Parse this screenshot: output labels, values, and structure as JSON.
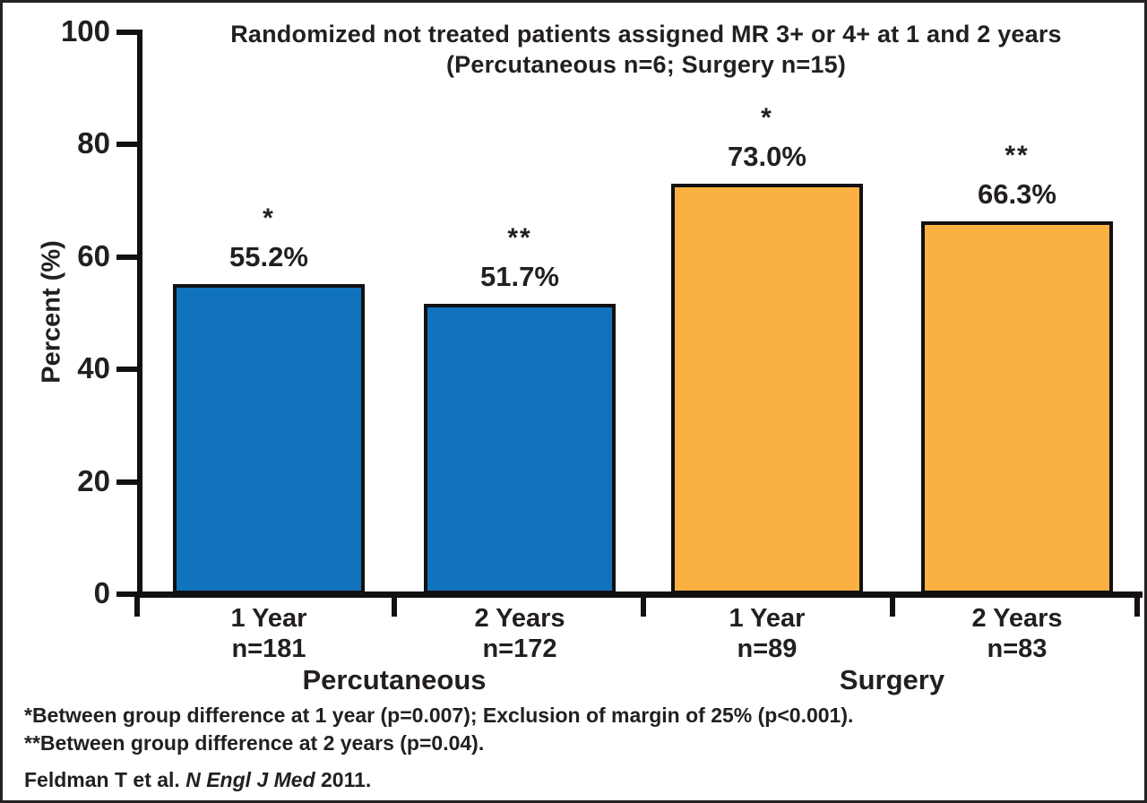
{
  "chart_data": {
    "type": "bar",
    "title": "Randomized not treated patients assigned MR 3+ or 4+ at 1 and 2 years",
    "subtitle": "(Percutaneous n=6; Surgery n=15)",
    "ylabel": "Percent (%)",
    "ylim": [
      0,
      100
    ],
    "yticks": [
      0,
      20,
      40,
      60,
      80,
      100
    ],
    "grid": false,
    "legend": "none",
    "categories": [
      "1 Year",
      "2 Years",
      "1 Year",
      "2 Years"
    ],
    "bars": [
      {
        "group": "Percutaneous",
        "label": "1 Year",
        "n_label": "n=181",
        "value": 55.2,
        "display": "55.2%",
        "marker": "*",
        "color": "#1173BC"
      },
      {
        "group": "Percutaneous",
        "label": "2 Years",
        "n_label": "n=172",
        "value": 51.7,
        "display": "51.7%",
        "marker": "**",
        "color": "#1173BC"
      },
      {
        "group": "Surgery",
        "label": "1 Year",
        "n_label": "n=89",
        "value": 73.0,
        "display": "73.0%",
        "marker": "*",
        "color": "#FBB042"
      },
      {
        "group": "Surgery",
        "label": "2 Years",
        "n_label": "n=83",
        "value": 66.3,
        "display": "66.3%",
        "marker": "**",
        "color": "#FBB042"
      }
    ],
    "groups": [
      {
        "label": "Percutaneous",
        "color": "#1173BC"
      },
      {
        "label": "Surgery",
        "color": "#FBB042"
      }
    ]
  },
  "footnotes": {
    "line1": "*Between group difference at 1 year (p=0.007); Exclusion of margin of 25% (p<0.001).",
    "line2": "**Between group difference at 2 years (p=0.04)."
  },
  "citation": {
    "prefix": "Feldman T et al. ",
    "journal": "N Engl J Med",
    "suffix": " 2011."
  }
}
